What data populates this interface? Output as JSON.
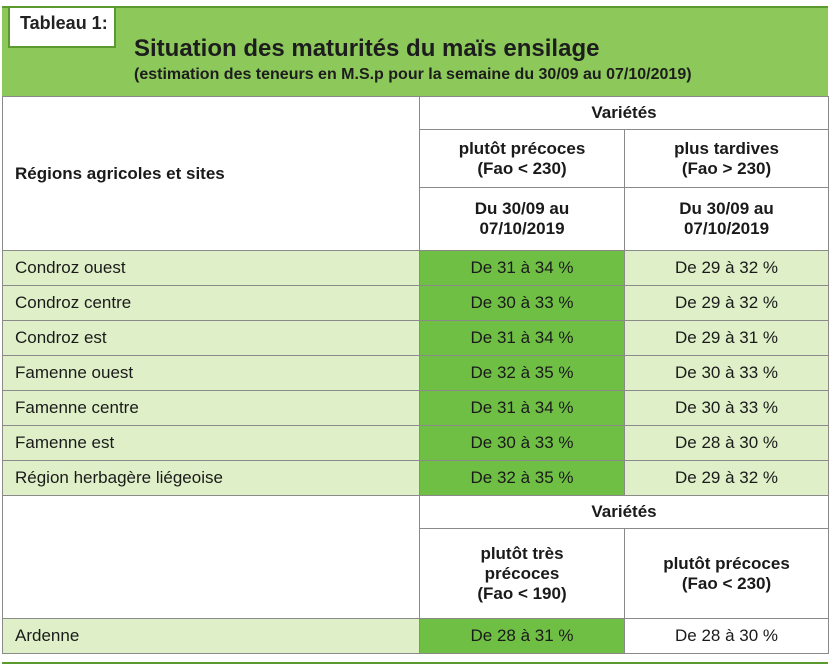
{
  "header": {
    "tag": "Tableau 1:",
    "title": "Situation des maturités du maïs ensilage",
    "subtitle": "(estimation des teneurs en M.S.p pour la semaine du 30/09 au 07/10/2019)"
  },
  "table1": {
    "group_header": "Variétés",
    "row_header": "Régions agricoles et sites",
    "col1": {
      "name": "plutôt précoces",
      "fao": "(Fao < 230)",
      "period_a": "Du 30/09 au",
      "period_b": "07/10/2019"
    },
    "col2": {
      "name": "plus tardives",
      "fao": "(Fao > 230)",
      "period_a": "Du 30/09 au",
      "period_b": "07/10/2019"
    },
    "rows": [
      {
        "region": "Condroz ouest",
        "v1": "De 31 à 34 %",
        "v2": "De 29 à 32 %"
      },
      {
        "region": "Condroz centre",
        "v1": "De 30 à 33 %",
        "v2": "De 29 à 32 %"
      },
      {
        "region": "Condroz est",
        "v1": "De 31 à 34 %",
        "v2": "De 29 à 31 %"
      },
      {
        "region": "Famenne ouest",
        "v1": "De 32 à 35 %",
        "v2": "De 30 à 33 %"
      },
      {
        "region": "Famenne centre",
        "v1": "De 31 à 34 %",
        "v2": "De 30 à 33 %"
      },
      {
        "region": "Famenne est",
        "v1": "De 30 à 33 %",
        "v2": "De 28 à 30 %"
      },
      {
        "region": "Région herbagère liégeoise",
        "v1": "De 32 à 35 %",
        "v2": "De 29 à 32 %"
      }
    ]
  },
  "table2": {
    "group_header": "Variétés",
    "col1": {
      "line1": "plutôt très",
      "line2": "précoces",
      "fao": "(Fao < 190)"
    },
    "col2": {
      "name": "plutôt précoces",
      "fao": "(Fao < 230)"
    },
    "rows": [
      {
        "region": "Ardenne",
        "v1": "De 28 à 31 %",
        "v2": "De 28 à 30 %"
      }
    ]
  },
  "colors": {
    "header_green": "#8cc85a",
    "row_green": "#dff0c8",
    "highlight_green": "#6fbf45",
    "border_green": "#5a9a2e"
  }
}
